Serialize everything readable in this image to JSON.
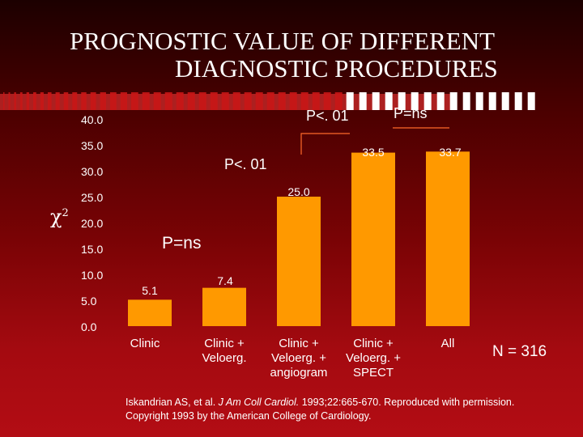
{
  "title_line1": "PROGNOSTIC VALUE OF DIFFERENT",
  "title_line2": "DIAGNOSTIC PROCEDURES",
  "y_axis_symbol": "χ",
  "y_axis_superscript": "2",
  "n_label": "N = 316",
  "citation": {
    "line1_prefix": "Iskandrian AS, et al. ",
    "journal": "J Am Coll Cardiol.",
    "line1_suffix": " 1993;22:665-670. Reproduced with permission.",
    "line2": "Copyright 1993 by the American College of Cardiology."
  },
  "colors": {
    "bar": "#ff9900",
    "text": "#ffffff",
    "stripe": "#ff3b3b",
    "bracket": "#ff6a2a"
  },
  "chart_data": {
    "type": "bar",
    "categories": [
      "Clinic",
      "Clinic + Veloerg.",
      "Clinic + Veloerg. + angiogram",
      "Clinic + Veloerg. + SPECT",
      "All"
    ],
    "category_lines": [
      [
        "Clinic"
      ],
      [
        "Clinic +",
        "Veloerg."
      ],
      [
        "Clinic +",
        "Veloerg. +",
        "angiogram"
      ],
      [
        "Clinic +",
        "Veloerg. +",
        "SPECT"
      ],
      [
        "All"
      ]
    ],
    "values": [
      5.1,
      7.4,
      25.0,
      33.5,
      33.7
    ],
    "value_labels": [
      "5.1",
      "7.4",
      "25.0",
      "33.5",
      "33.7"
    ],
    "yticks": [
      0,
      5,
      10,
      15,
      20,
      25,
      30,
      35,
      40
    ],
    "ytick_labels": [
      "0.0",
      "5.0",
      "10.0",
      "15.0",
      "20.0",
      "25.0",
      "30.0",
      "35.0",
      "40.0"
    ],
    "ylim": [
      0,
      40
    ],
    "annotations": [
      {
        "text": "P=ns",
        "between": [
          0,
          1
        ]
      },
      {
        "text": "P<. 01",
        "between": [
          1,
          2
        ]
      },
      {
        "text": "P<. 01",
        "between": [
          2,
          3
        ]
      },
      {
        "text": "P=ns",
        "between": [
          3,
          4
        ]
      }
    ]
  }
}
